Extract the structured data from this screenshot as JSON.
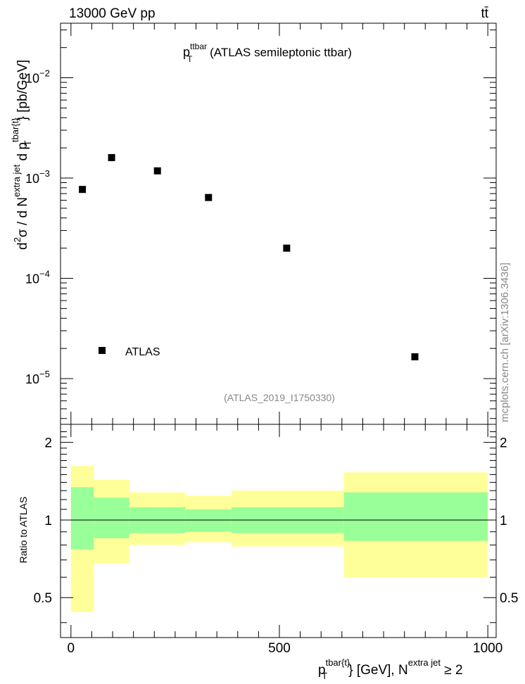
{
  "header": {
    "left": "13000 GeV pp",
    "right": "tt̄"
  },
  "plot_title": {
    "main": "p",
    "sub": "T",
    "sup": "ttbar",
    "rest": " (ATLAS semileptonic ttbar)"
  },
  "analysis_id": "(ATLAS_2019_I1750330)",
  "side_credit": "mcplots.cern.ch [arXiv:1306.3436]",
  "legend": {
    "label": "ATLAS"
  },
  "y_main_label": "d²σ / d N^{extra jet} d p_T^{tbar{t}} [pb/GeV]",
  "y_ratio_label": "Ratio to ATLAS",
  "x_label": "p_T^{tbar{t}} [GeV], N^{extra jet} ≥ 2",
  "main_yticks": [
    {
      "b": "10",
      "e": "−5",
      "v": 1e-05
    },
    {
      "b": "10",
      "e": "−4",
      "v": 0.0001
    },
    {
      "b": "10",
      "e": "−3",
      "v": 0.001
    },
    {
      "b": "10",
      "e": "−2",
      "v": 0.01
    }
  ],
  "ratio_yticks": [
    "0.5",
    "1",
    "2"
  ],
  "xticks": [
    "0",
    "500",
    "1000"
  ],
  "colors": {
    "inner_band": "#99ff99",
    "outer_band": "#ffff99",
    "marker": "#000000"
  },
  "chart_data": [
    {
      "type": "scatter",
      "title": "p_T^{ttbar} (ATLAS semileptonic ttbar)",
      "xlabel": "p_T^{tbar{t}} [GeV], N^{extra jet} ≥ 2",
      "ylabel": "d²σ / d N^{extra jet} d p_T^{tbar{t}} [pb/GeV]",
      "yscale": "log",
      "xlim": [
        -25,
        1020
      ],
      "ylim": [
        3.5e-06,
        0.035
      ],
      "legend": "bottom-left",
      "series": [
        {
          "name": "ATLAS",
          "x": [
            27.5,
            97.5,
            207.5,
            330,
            517.5,
            825
          ],
          "y": [
            0.00077,
            0.0016,
            0.00118,
            0.00064,
            0.0002,
            1.65e-05
          ]
        }
      ]
    },
    {
      "type": "area",
      "ylabel": "Ratio to ATLAS",
      "yscale": "log",
      "ylim": [
        0.35,
        2.35
      ],
      "xlim": [
        -25,
        1020
      ],
      "bins": [
        {
          "x0": 0,
          "x1": 55,
          "inner": [
            0.77,
            1.34
          ],
          "outer": [
            0.44,
            1.62
          ]
        },
        {
          "x0": 55,
          "x1": 140,
          "inner": [
            0.85,
            1.22
          ],
          "outer": [
            0.68,
            1.43
          ]
        },
        {
          "x0": 140,
          "x1": 275,
          "inner": [
            0.89,
            1.12
          ],
          "outer": [
            0.8,
            1.28
          ]
        },
        {
          "x0": 275,
          "x1": 385,
          "inner": [
            0.9,
            1.1
          ],
          "outer": [
            0.82,
            1.24
          ]
        },
        {
          "x0": 385,
          "x1": 655,
          "inner": [
            0.89,
            1.12
          ],
          "outer": [
            0.79,
            1.3
          ]
        },
        {
          "x0": 655,
          "x1": 1000,
          "inner": [
            0.83,
            1.28
          ],
          "outer": [
            0.6,
            1.53
          ]
        }
      ],
      "reference_line": 1
    }
  ]
}
